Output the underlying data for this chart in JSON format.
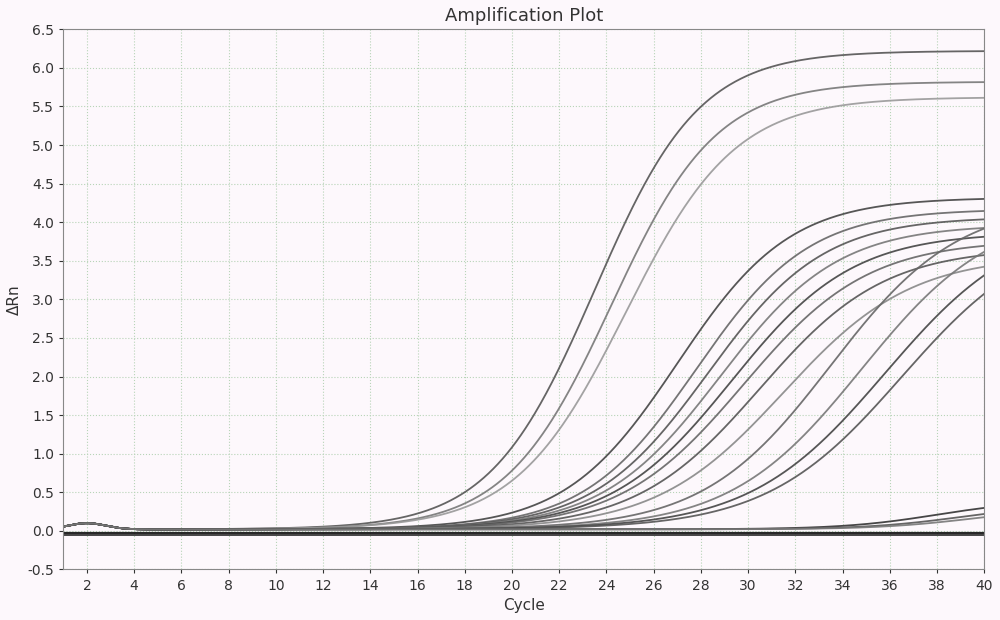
{
  "title": "Amplification Plot",
  "xlabel": "Cycle",
  "ylabel": "ΔRn",
  "xlim": [
    1,
    40
  ],
  "ylim": [
    -0.5,
    6.5
  ],
  "xticks": [
    2,
    4,
    6,
    8,
    10,
    12,
    14,
    16,
    18,
    20,
    22,
    24,
    26,
    28,
    30,
    32,
    34,
    36,
    38,
    40
  ],
  "yticks": [
    -0.5,
    0.0,
    0.5,
    1.0,
    1.5,
    2.0,
    2.5,
    3.0,
    3.5,
    4.0,
    4.5,
    5.0,
    5.5,
    6.0,
    6.5
  ],
  "background_color": "#fdf8fc",
  "grid_color": "#b8d4b8",
  "title_fontsize": 13,
  "axis_label_fontsize": 11,
  "tick_fontsize": 10,
  "spine_color": "#888888",
  "curves": [
    {
      "midpoint": 23.5,
      "plateau": 6.2,
      "steepness": 0.45,
      "color": "#555555",
      "lw": 1.3,
      "baseline": 0.02
    },
    {
      "midpoint": 24.2,
      "plateau": 5.8,
      "steepness": 0.45,
      "color": "#777777",
      "lw": 1.3,
      "baseline": 0.02
    },
    {
      "midpoint": 24.8,
      "plateau": 5.6,
      "steepness": 0.43,
      "color": "#999999",
      "lw": 1.3,
      "baseline": 0.02
    },
    {
      "midpoint": 27.0,
      "plateau": 4.3,
      "steepness": 0.42,
      "color": "#444444",
      "lw": 1.3,
      "baseline": 0.02
    },
    {
      "midpoint": 27.8,
      "plateau": 4.15,
      "steepness": 0.42,
      "color": "#666666",
      "lw": 1.3,
      "baseline": 0.02
    },
    {
      "midpoint": 28.3,
      "plateau": 4.05,
      "steepness": 0.41,
      "color": "#555555",
      "lw": 1.3,
      "baseline": 0.02
    },
    {
      "midpoint": 28.8,
      "plateau": 3.95,
      "steepness": 0.4,
      "color": "#777777",
      "lw": 1.3,
      "baseline": 0.02
    },
    {
      "midpoint": 29.3,
      "plateau": 3.85,
      "steepness": 0.39,
      "color": "#444444",
      "lw": 1.3,
      "baseline": 0.02
    },
    {
      "midpoint": 29.8,
      "plateau": 3.75,
      "steepness": 0.38,
      "color": "#666666",
      "lw": 1.3,
      "baseline": 0.02
    },
    {
      "midpoint": 30.5,
      "plateau": 3.65,
      "steepness": 0.38,
      "color": "#555555",
      "lw": 1.3,
      "baseline": 0.02
    },
    {
      "midpoint": 31.5,
      "plateau": 3.55,
      "steepness": 0.37,
      "color": "#888888",
      "lw": 1.3,
      "baseline": 0.02
    },
    {
      "midpoint": 33.5,
      "plateau": 4.25,
      "steepness": 0.37,
      "color": "#666666",
      "lw": 1.3,
      "baseline": 0.02
    },
    {
      "midpoint": 34.8,
      "plateau": 4.15,
      "steepness": 0.36,
      "color": "#777777",
      "lw": 1.3,
      "baseline": 0.02
    },
    {
      "midpoint": 35.8,
      "plateau": 4.05,
      "steepness": 0.35,
      "color": "#444444",
      "lw": 1.3,
      "baseline": 0.02
    },
    {
      "midpoint": 36.5,
      "plateau": 3.95,
      "steepness": 0.35,
      "color": "#555555",
      "lw": 1.3,
      "baseline": 0.02
    },
    {
      "midpoint": 38.0,
      "plateau": 0.38,
      "steepness": 0.5,
      "color": "#333333",
      "lw": 1.3,
      "baseline": 0.02
    },
    {
      "midpoint": 39.0,
      "plateau": 0.32,
      "steepness": 0.5,
      "color": "#555555",
      "lw": 1.3,
      "baseline": 0.02
    },
    {
      "midpoint": 39.5,
      "plateau": 0.28,
      "steepness": 0.5,
      "color": "#777777",
      "lw": 1.3,
      "baseline": 0.02
    },
    {
      "midpoint": 999,
      "plateau": 0.0,
      "steepness": 0.5,
      "color": "#111111",
      "lw": 1.6,
      "baseline": -0.03
    },
    {
      "midpoint": 999,
      "plateau": 0.0,
      "steepness": 0.5,
      "color": "#222222",
      "lw": 1.3,
      "baseline": -0.05
    }
  ],
  "spike_x": 2.0,
  "spike_height": 0.1
}
